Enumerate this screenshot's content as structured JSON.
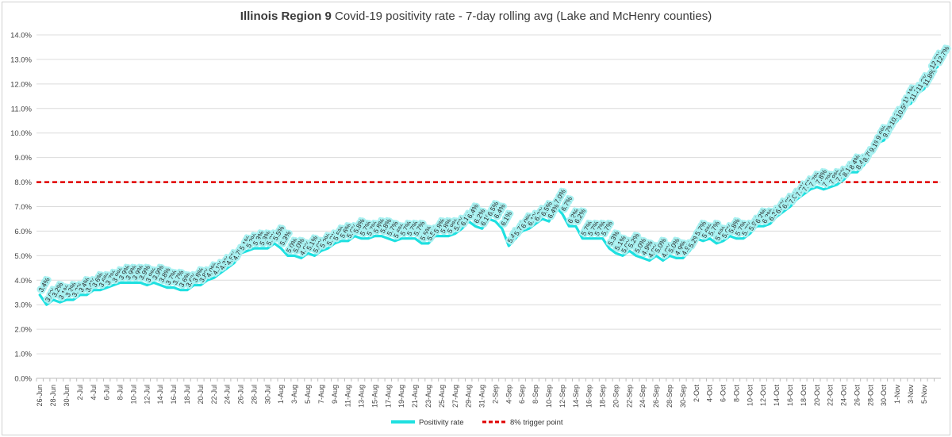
{
  "chart_data": {
    "type": "line",
    "title_bold": "Illinois Region 9",
    "title_rest": " Covid-19 positivity rate - 7-day rolling avg (Lake and McHenry counties)",
    "ylim": [
      0,
      14
    ],
    "ytick_values": [
      0,
      1,
      2,
      3,
      4,
      5,
      6,
      7,
      8,
      9,
      10,
      11,
      12,
      13,
      14
    ],
    "ytick_labels": [
      "0.0%",
      "1.0%",
      "2.0%",
      "3.0%",
      "4.0%",
      "5.0%",
      "6.0%",
      "7.0%",
      "8.0%",
      "9.0%",
      "10.0%",
      "11.0%",
      "12.0%",
      "13.0%",
      "14.0%"
    ],
    "x_tick_labels": [
      "26-Jun",
      "28-Jun",
      "30-Jun",
      "2-Jul",
      "4-Jul",
      "6-Jul",
      "8-Jul",
      "10-Jul",
      "12-Jul",
      "14-Jul",
      "16-Jul",
      "18-Jul",
      "20-Jul",
      "22-Jul",
      "24-Jul",
      "26-Jul",
      "28-Jul",
      "30-Jul",
      "1-Aug",
      "3-Aug",
      "5-Aug",
      "7-Aug",
      "9-Aug",
      "11-Aug",
      "13-Aug",
      "15-Aug",
      "17-Aug",
      "19-Aug",
      "21-Aug",
      "23-Aug",
      "25-Aug",
      "27-Aug",
      "29-Aug",
      "31-Aug",
      "2-Sep",
      "4-Sep",
      "6-Sep",
      "8-Sep",
      "10-Sep",
      "12-Sep",
      "14-Sep",
      "16-Sep",
      "18-Sep",
      "20-Sep",
      "22-Sep",
      "24-Sep",
      "26-Sep",
      "28-Sep",
      "30-Sep",
      "2-Oct",
      "4-Oct",
      "6-Oct",
      "8-Oct",
      "10-Oct",
      "12-Oct",
      "14-Oct",
      "16-Oct",
      "18-Oct",
      "20-Oct",
      "22-Oct",
      "24-Oct",
      "26-Oct",
      "28-Oct",
      "30-Oct",
      "1-Nov",
      "3-Nov",
      "5-Nov"
    ],
    "threshold": {
      "name": "8% trigger point",
      "value": 8,
      "color": "#e00000"
    },
    "series": [
      {
        "name": "Positivity rate",
        "color": "#1ee0e0",
        "values": [
          3.4,
          3.0,
          3.2,
          3.1,
          3.2,
          3.2,
          3.4,
          3.4,
          3.6,
          3.6,
          3.7,
          3.8,
          3.9,
          3.9,
          3.9,
          3.9,
          3.8,
          3.9,
          3.8,
          3.7,
          3.7,
          3.6,
          3.6,
          3.8,
          3.8,
          4.0,
          4.1,
          4.3,
          4.5,
          4.7,
          5.1,
          5.2,
          5.3,
          5.3,
          5.3,
          5.5,
          5.3,
          5.0,
          5.0,
          4.9,
          5.1,
          5.0,
          5.2,
          5.3,
          5.5,
          5.6,
          5.6,
          5.8,
          5.7,
          5.7,
          5.8,
          5.8,
          5.7,
          5.6,
          5.7,
          5.7,
          5.7,
          5.5,
          5.5,
          5.8,
          5.8,
          5.8,
          5.9,
          6.1,
          6.4,
          6.2,
          6.1,
          6.5,
          6.4,
          6.1,
          5.4,
          5.7,
          6.0,
          6.1,
          6.3,
          6.5,
          6.4,
          7.0,
          6.7,
          6.2,
          6.2,
          5.7,
          5.7,
          5.7,
          5.7,
          5.3,
          5.1,
          5.0,
          5.2,
          5.0,
          4.9,
          4.8,
          5.0,
          4.8,
          5.0,
          4.9,
          4.9,
          5.2,
          5.7,
          5.6,
          5.7,
          5.5,
          5.6,
          5.8,
          5.7,
          5.7,
          5.9,
          6.2,
          6.2,
          6.3,
          6.6,
          6.8,
          7.0,
          7.3,
          7.5,
          7.7,
          7.8,
          7.7,
          7.8,
          7.9,
          8.1,
          8.4,
          8.4,
          8.7,
          9.1,
          9.6,
          9.7,
          10.2,
          10.5,
          11.1,
          11.2,
          11.6,
          11.8,
          12.5,
          12.7
        ]
      }
    ],
    "legend": {
      "position": "bottom-center"
    },
    "grid": "y-major"
  }
}
